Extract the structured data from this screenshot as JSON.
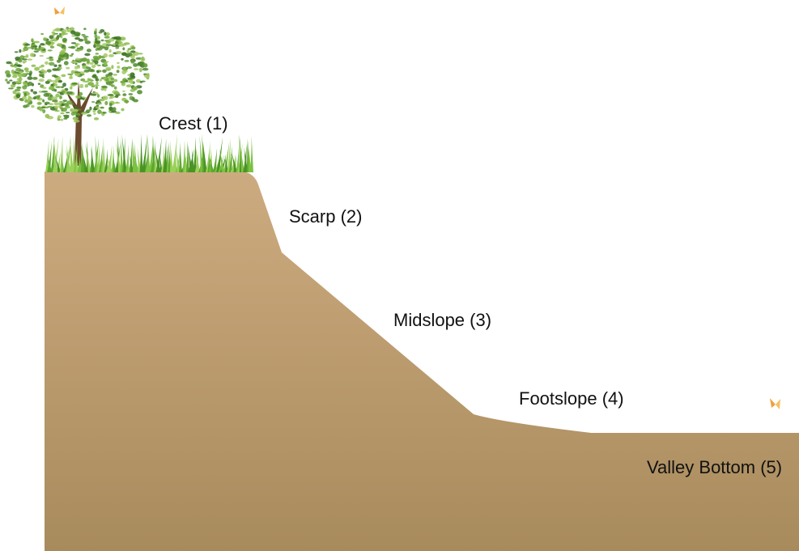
{
  "labels": [
    "Crest (1)",
    "Scarp (2)",
    "Midslope (3)",
    "Footslope (4)",
    "Valley Bottom (5)"
  ]
}
